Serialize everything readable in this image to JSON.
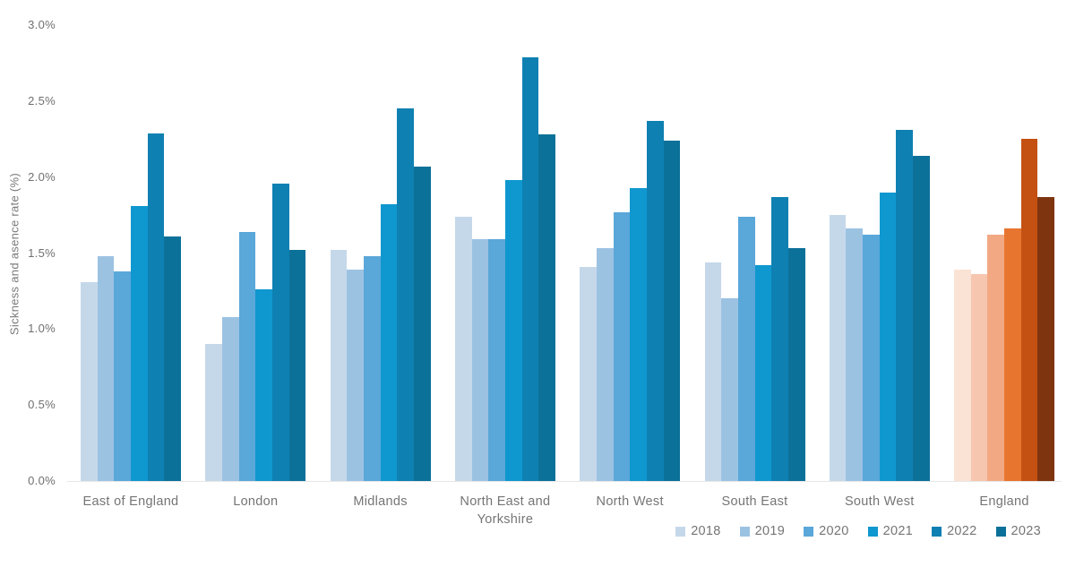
{
  "chart_data": {
    "type": "bar",
    "title": "",
    "xlabel": "",
    "ylabel": "Sickness and asence rate (%)",
    "ylim": [
      0,
      3.0
    ],
    "ytick_labels": [
      "0.0%",
      "0.5%",
      "1.0%",
      "1.5%",
      "2.0%",
      "2.5%",
      "3.0%"
    ],
    "grid": "off",
    "legend_position": "bottom-right",
    "categories": [
      "East of England",
      "London",
      "Midlands",
      "North East and Yorkshire",
      "North West",
      "South East",
      "South West",
      "England"
    ],
    "series": [
      {
        "name": "2018",
        "values": [
          1.31,
          0.9,
          1.52,
          1.74,
          1.41,
          1.44,
          1.75,
          1.39
        ]
      },
      {
        "name": "2019",
        "values": [
          1.48,
          1.08,
          1.39,
          1.59,
          1.53,
          1.2,
          1.66,
          1.36
        ]
      },
      {
        "name": "2020",
        "values": [
          1.38,
          1.64,
          1.48,
          1.59,
          1.77,
          1.74,
          1.62,
          1.62
        ]
      },
      {
        "name": "2021",
        "values": [
          1.81,
          1.26,
          1.82,
          1.98,
          1.93,
          1.42,
          1.9,
          1.66
        ]
      },
      {
        "name": "2022",
        "values": [
          2.29,
          1.96,
          2.45,
          2.79,
          2.37,
          1.87,
          2.31,
          2.25
        ]
      },
      {
        "name": "2023",
        "values": [
          1.61,
          1.52,
          2.07,
          2.28,
          2.24,
          1.53,
          2.14,
          1.87
        ]
      }
    ],
    "series_colors": [
      "#c5d8ea",
      "#9cc2e2",
      "#5aa7d9",
      "#0f97cf",
      "#0e80b2",
      "#0c7199"
    ],
    "highlight_category": "England",
    "highlight_colors": [
      "#fae3d5",
      "#f6c6ae",
      "#f2a983",
      "#e8752f",
      "#c45112",
      "#7f3410"
    ],
    "legend_entries": [
      "2018",
      "2019",
      "2020",
      "2021",
      "2022",
      "2023"
    ],
    "text_color": "#757575",
    "axis_line_color": "#e7e7e7"
  }
}
